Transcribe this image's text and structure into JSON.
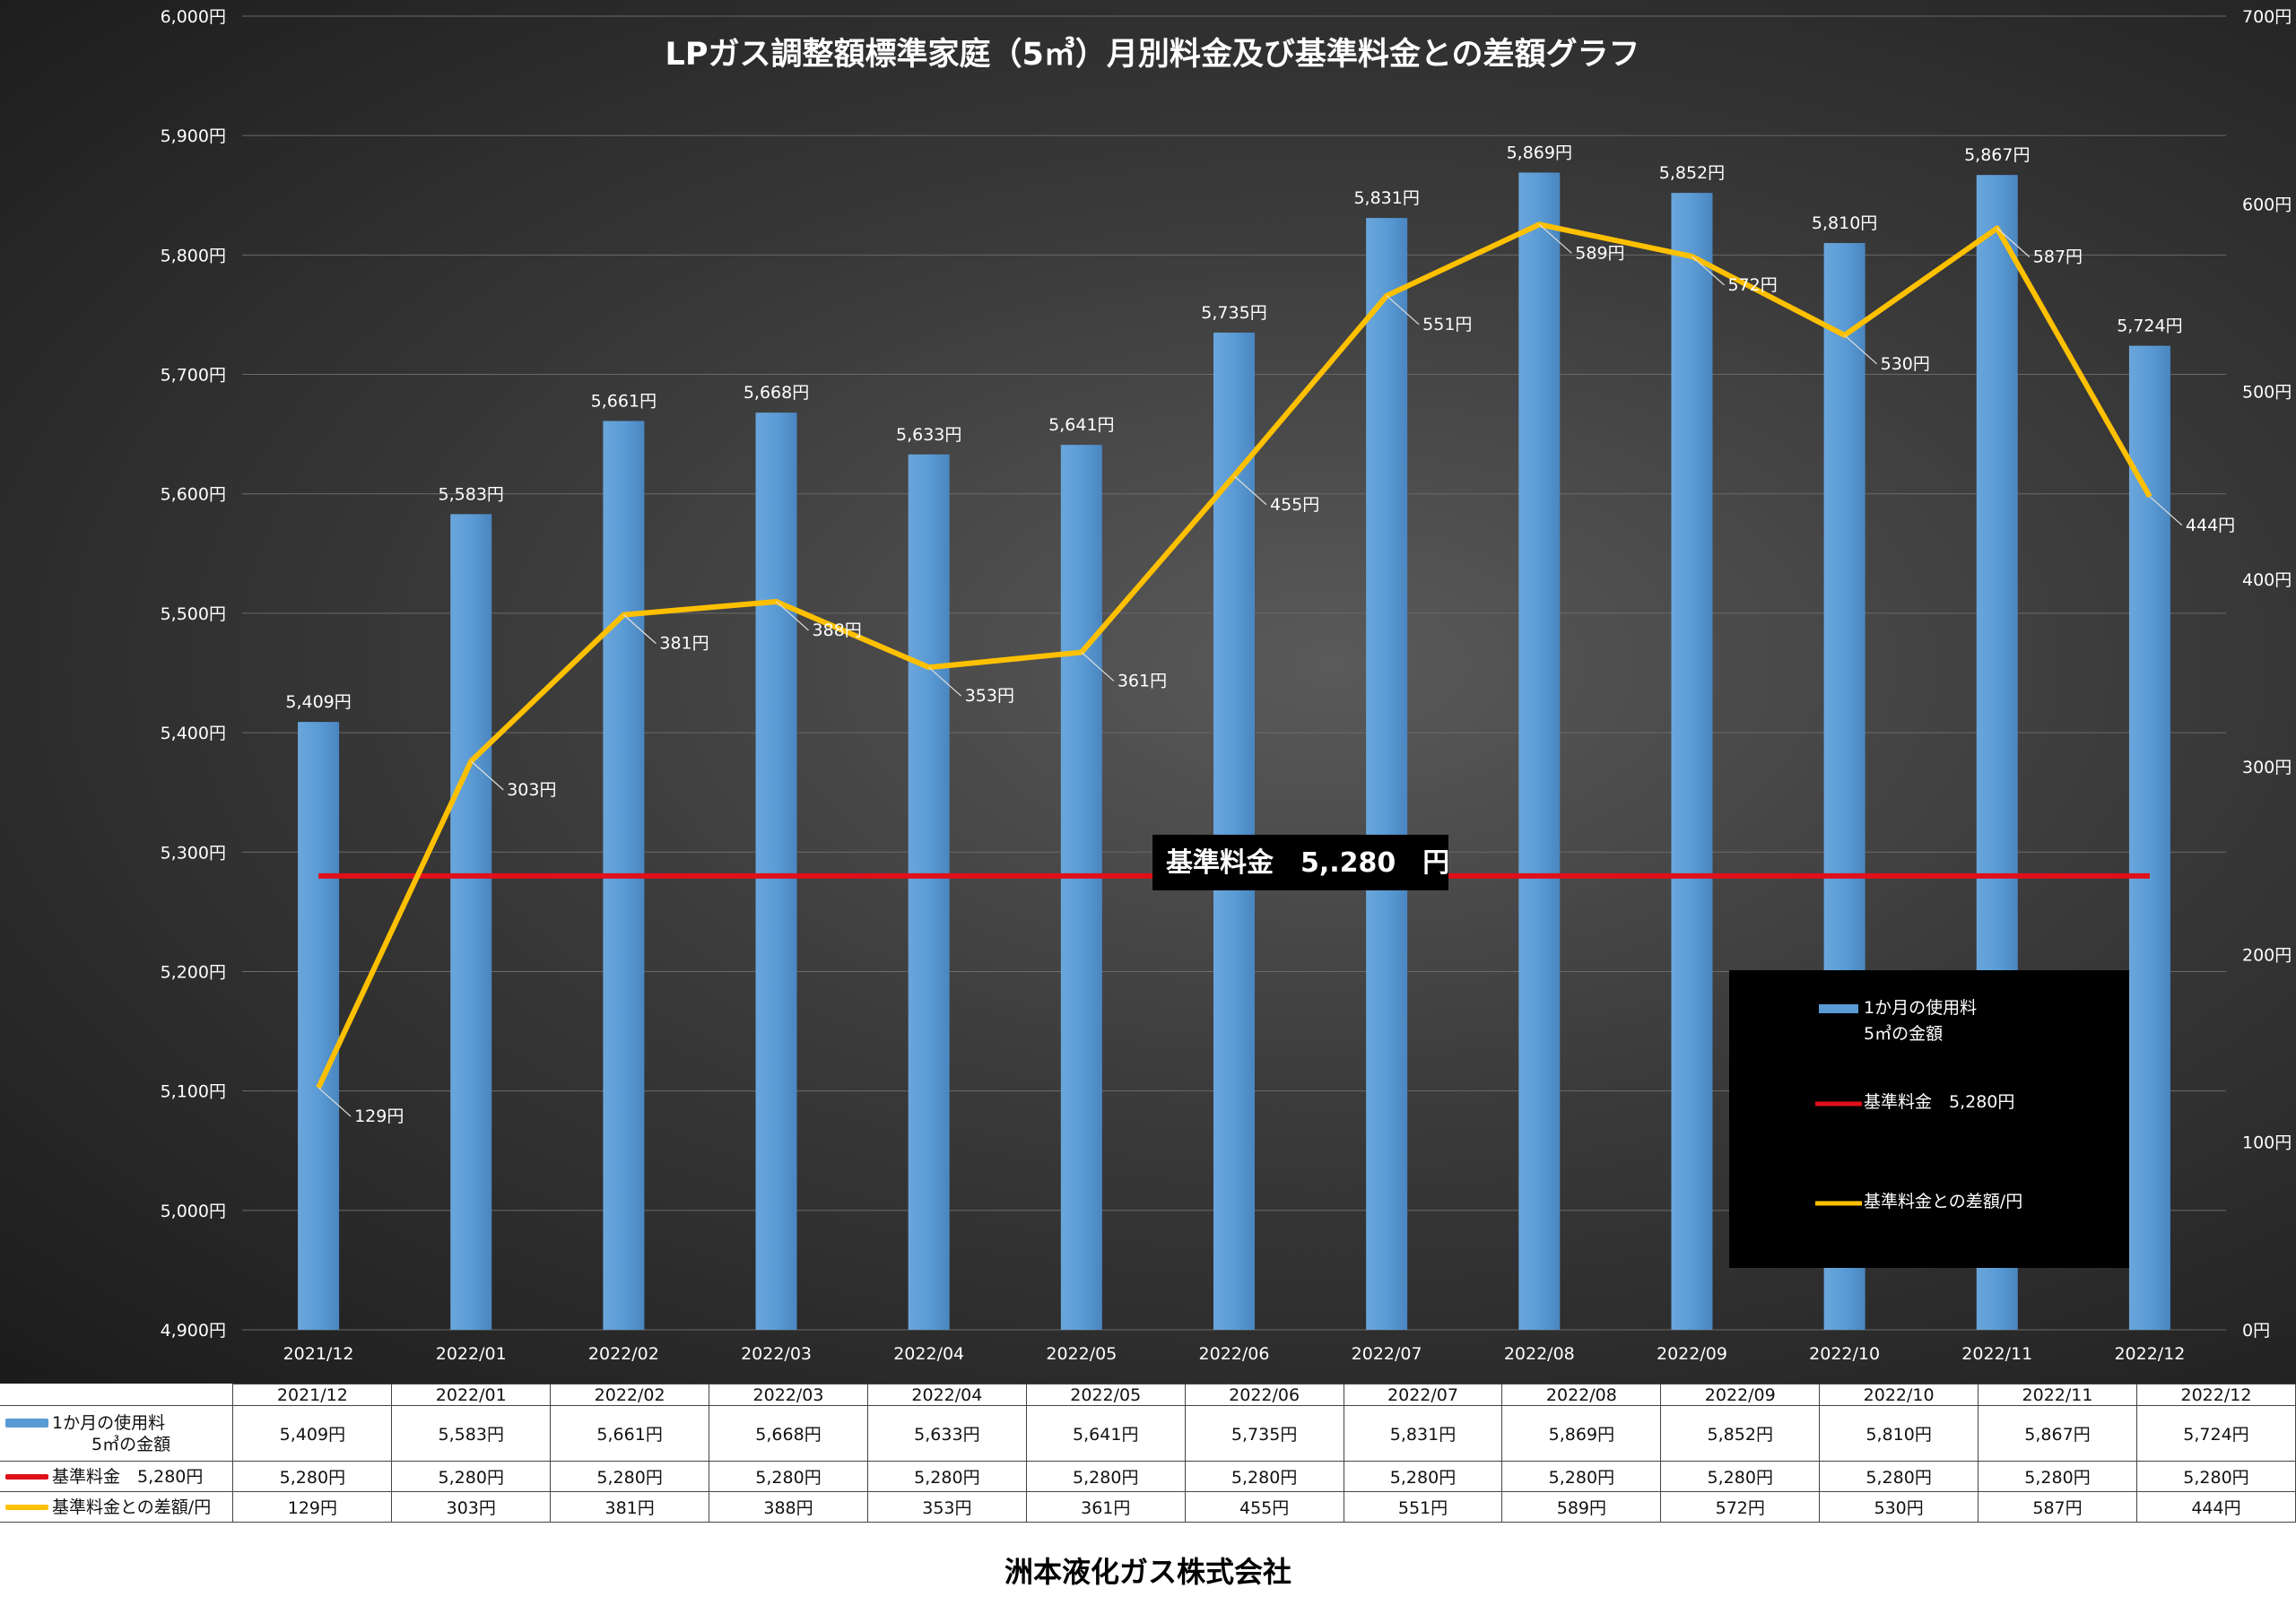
{
  "chart_data": {
    "type": "bar",
    "title": "LPガス調整額標準家庭（5㎥）月別料金及び基準料金との差額グラフ",
    "categories": [
      "2021/12",
      "2022/01",
      "2022/02",
      "2022/03",
      "2022/04",
      "2022/05",
      "2022/06",
      "2022/07",
      "2022/08",
      "2022/09",
      "2022/10",
      "2022/11",
      "2022/12"
    ],
    "series": [
      {
        "name": "1か月の使用料 5㎥の金額",
        "type": "bar",
        "axis": "left",
        "color": "#5b9bd5",
        "values": [
          5409,
          5583,
          5661,
          5668,
          5633,
          5641,
          5735,
          5831,
          5869,
          5852,
          5810,
          5867,
          5724
        ],
        "labels": [
          "5,409円",
          "5,583円",
          "5,661円",
          "5,668円",
          "5,633円",
          "5,641円",
          "5,735円",
          "5,831円",
          "5,869円",
          "5,852円",
          "5,810円",
          "5,867円",
          "5,724円"
        ]
      },
      {
        "name": "基準料金　5,280円",
        "type": "line",
        "axis": "left",
        "color": "#e0101a",
        "values": [
          5280,
          5280,
          5280,
          5280,
          5280,
          5280,
          5280,
          5280,
          5280,
          5280,
          5280,
          5280,
          5280
        ],
        "labels": [
          "5,280円",
          "5,280円",
          "5,280円",
          "5,280円",
          "5,280円",
          "5,280円",
          "5,280円",
          "5,280円",
          "5,280円",
          "5,280円",
          "5,280円",
          "5,280円",
          "5,280円"
        ]
      },
      {
        "name": "基準料金との差額/円",
        "type": "line",
        "axis": "right",
        "color": "#ffc000",
        "values": [
          129,
          303,
          381,
          388,
          353,
          361,
          455,
          551,
          589,
          572,
          530,
          587,
          444
        ],
        "labels": [
          "129円",
          "303円",
          "381円",
          "388円",
          "353円",
          "361円",
          "455円",
          "551円",
          "589円",
          "572円",
          "530円",
          "587円",
          "444円"
        ]
      }
    ],
    "left_axis": {
      "min": 4900,
      "max": 6000,
      "step": 100,
      "tick_labels": [
        "4,900円",
        "5,000円",
        "5,100円",
        "5,200円",
        "5,300円",
        "5,400円",
        "5,500円",
        "5,600円",
        "5,700円",
        "5,800円",
        "5,900円",
        "6,000円"
      ]
    },
    "right_axis": {
      "min": 0,
      "max": 700,
      "step": 100,
      "tick_labels": [
        "0円",
        "100円",
        "200円",
        "300円",
        "400円",
        "500円",
        "600円",
        "700円"
      ]
    },
    "grid": true,
    "legend_placement": "bottom-right",
    "legend_items": [
      {
        "line1": "1か月の使用料",
        "line2": "5㎥の金額",
        "color": "#5b9bd5",
        "kind": "bar"
      },
      {
        "line1": "基準料金　5,280円",
        "line2": "",
        "color": "#e0101a",
        "kind": "line"
      },
      {
        "line1": "基準料金との差額/円",
        "line2": "",
        "color": "#ffc000",
        "kind": "line"
      }
    ],
    "annotation": "基準料金　5,.280　円"
  },
  "table": {
    "rows": [
      {
        "label_line1": "1か月の使用料",
        "label_line2": "5㎥の金額",
        "kind": "bar"
      },
      {
        "label_line1": "基準料金　5,280円",
        "label_line2": "",
        "kind": "red"
      },
      {
        "label_line1": "基準料金との差額/円",
        "label_line2": "",
        "kind": "gold"
      }
    ]
  },
  "footer": "洲本液化ガス株式会社"
}
